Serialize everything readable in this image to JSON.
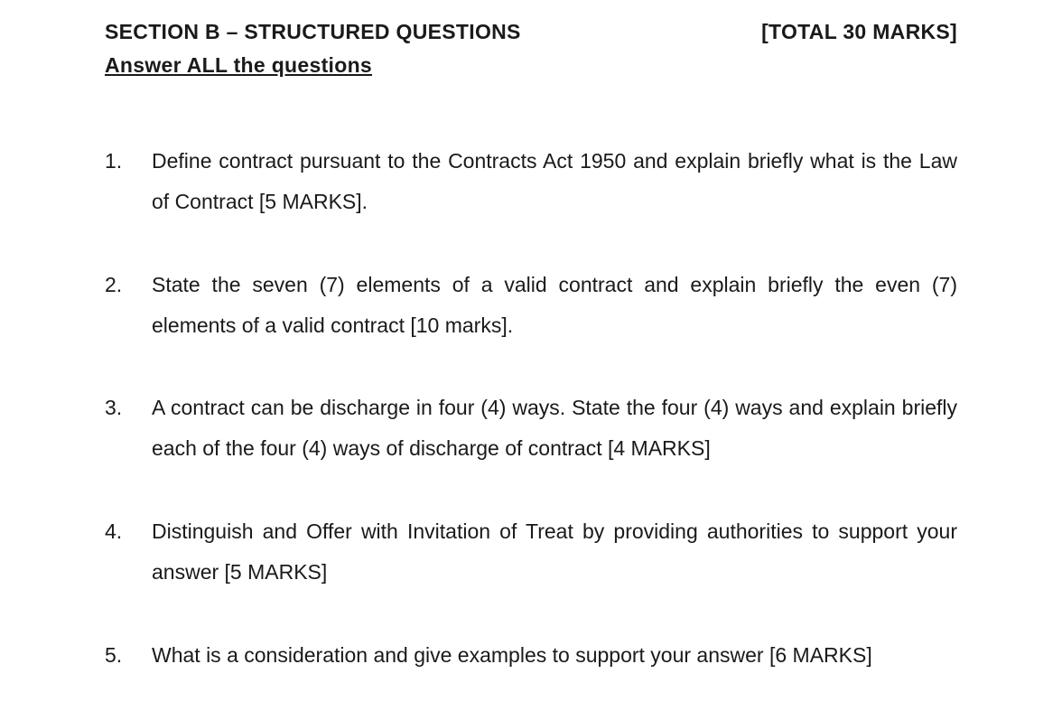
{
  "header": {
    "section_title": "SECTION B – STRUCTURED QUESTIONS",
    "total_marks": "[TOTAL 30 MARKS]",
    "instruction": "Answer ALL the questions"
  },
  "questions": [
    {
      "number": "1.",
      "text": "Define contract pursuant to the Contracts Act 1950 and explain briefly what is the Law of Contract [5 MARKS]."
    },
    {
      "number": "2.",
      "text": "State the seven (7) elements of a valid contract and explain briefly the even (7) elements of a valid contract [10 marks]."
    },
    {
      "number": "3.",
      "text": "A contract can be discharge in four (4) ways. State the four (4) ways and explain briefly each of the four (4) ways of discharge of contract [4 MARKS]"
    },
    {
      "number": "4.",
      "text": "Distinguish and Offer with Invitation of Treat by providing authorities to support your answer [5 MARKS]"
    },
    {
      "number": "5.",
      "text": "What is a consideration and give examples to support your answer [6 MARKS]"
    }
  ],
  "style": {
    "background_color": "#ffffff",
    "text_color": "#1a1a1a",
    "font_family": "Verdana",
    "title_fontsize": 23,
    "body_fontsize": 23,
    "line_height": 1.95
  }
}
